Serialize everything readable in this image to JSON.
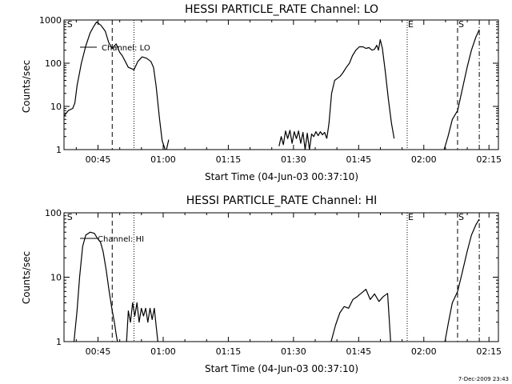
{
  "colors": {
    "background": "#ffffff",
    "foreground": "#000000"
  },
  "footer": {
    "timestamp": "7-Dec-2009 23:43"
  },
  "chart_data": [
    {
      "type": "line",
      "title": "HESSI PARTICLE_RATE Channel: LO",
      "xlabel": "Start Time (04-Jun-03 00:37:10)",
      "ylabel": "Counts/sec",
      "yscale": "log",
      "ylim": [
        1,
        1000
      ],
      "xlim_minutes_after_start": [
        0,
        100
      ],
      "xtick_labels": [
        "00:45",
        "01:00",
        "01:15",
        "01:30",
        "01:45",
        "02:00",
        "02:15"
      ],
      "xtick_minutes": [
        7.83,
        22.83,
        37.83,
        52.83,
        67.83,
        82.83,
        97.83
      ],
      "ytick_labels": [
        "1",
        "10",
        "100",
        "1000"
      ],
      "ytick_values": [
        1,
        10,
        100,
        1000
      ],
      "legend": {
        "entries": [
          "Channel: LO"
        ],
        "placement": "top-left"
      },
      "markers": [
        {
          "label": "S",
          "minute": 0.5,
          "style": "none"
        },
        {
          "label": "",
          "minute": 11.1,
          "style": "dashed"
        },
        {
          "label": "",
          "minute": 16.1,
          "style": "dotted"
        },
        {
          "label": "E",
          "minute": 79.0,
          "style": "dotted"
        },
        {
          "label": "S",
          "minute": 90.6,
          "style": "dashed"
        },
        {
          "label": "",
          "minute": 95.6,
          "style": "dashdot"
        }
      ],
      "series": [
        {
          "segments": [
            {
              "x": [
                0,
                1,
                2,
                2.5,
                3,
                4,
                5,
                6,
                6.8,
                7.5,
                8.5,
                9.5,
                10.3,
                11.1,
                12,
                12.8,
                13.4,
                14.1,
                14.8,
                15.5,
                16.1,
                17,
                18,
                19,
                20,
                20.6,
                21.2,
                22,
                22.6,
                23.3
              ],
              "y": [
                6,
                8,
                9,
                12,
                30,
                100,
                250,
                500,
                700,
                900,
                750,
                550,
                300,
                220,
                280,
                180,
                150,
                110,
                80,
                75,
                70,
                110,
                140,
                130,
                110,
                80,
                30,
                5,
                1.6,
                1
              ]
            },
            {
              "x": [
                23.6,
                24.1
              ],
              "y": [
                1,
                1.7
              ]
            },
            {
              "x": [
                49.5,
                50,
                50.5,
                51,
                51.5,
                52,
                52.5,
                53,
                53.5,
                54,
                54.5,
                55,
                55.5,
                56,
                56.5,
                57,
                57.5,
                58,
                58.5,
                59,
                59.5,
                60,
                60.5
              ],
              "y": [
                1.2,
                2,
                1.3,
                2.7,
                1.8,
                2.8,
                1.4,
                2.6,
                1.8,
                2.7,
                1.4,
                2.5,
                1,
                2.4,
                1,
                2.3,
                2,
                2.6,
                2.1,
                2.6,
                2.2,
                2.5,
                1.8
              ]
            },
            {
              "x": [
                60.5,
                61,
                61.6,
                62.3,
                63,
                63.6,
                64.2,
                65,
                65.7,
                66.4,
                67.2,
                68,
                68.8,
                69.5,
                70.2,
                70.9,
                71.5,
                72,
                72.4,
                72.8,
                73.3,
                74,
                74.7,
                75.4,
                76
              ],
              "y": [
                1.8,
                4,
                20,
                40,
                45,
                50,
                60,
                80,
                100,
                150,
                200,
                240,
                240,
                220,
                230,
                200,
                210,
                260,
                200,
                350,
                220,
                60,
                14,
                4,
                1.8
              ]
            },
            {
              "x": [
                87.5,
                88.4,
                89.4,
                90.6,
                91.7,
                92.8,
                93.8,
                94.8,
                95.6
              ],
              "y": [
                1,
                2,
                5,
                8,
                25,
                80,
                200,
                400,
                600
              ]
            }
          ]
        }
      ]
    },
    {
      "type": "line",
      "title": "HESSI PARTICLE_RATE Channel: HI",
      "xlabel": "Start Time (04-Jun-03 00:37:10)",
      "ylabel": "Counts/sec",
      "yscale": "log",
      "ylim": [
        1,
        100
      ],
      "xlim_minutes_after_start": [
        0,
        100
      ],
      "xtick_labels": [
        "00:45",
        "01:00",
        "01:15",
        "01:30",
        "01:45",
        "02:00",
        "02:15"
      ],
      "xtick_minutes": [
        7.83,
        22.83,
        37.83,
        52.83,
        67.83,
        82.83,
        97.83
      ],
      "ytick_labels": [
        "1",
        "10",
        "100"
      ],
      "ytick_values": [
        1,
        10,
        100
      ],
      "legend": {
        "entries": [
          "Channel: HI"
        ],
        "placement": "top-left"
      },
      "markers": [
        {
          "label": "S",
          "minute": 0.5,
          "style": "none"
        },
        {
          "label": "",
          "minute": 11.1,
          "style": "dashed"
        },
        {
          "label": "",
          "minute": 16.1,
          "style": "dotted"
        },
        {
          "label": "E",
          "minute": 79.0,
          "style": "dotted"
        },
        {
          "label": "S",
          "minute": 90.6,
          "style": "dashed"
        },
        {
          "label": "",
          "minute": 95.6,
          "style": "dashdot"
        }
      ],
      "series": [
        {
          "segments": [
            {
              "x": [
                2.3,
                3,
                3.6,
                4.3,
                5,
                6,
                7,
                7.7,
                8.4,
                9,
                9.7,
                10.4,
                11.1,
                11.6,
                12,
                12.3
              ],
              "y": [
                1,
                3,
                10,
                30,
                45,
                50,
                48,
                40,
                35,
                25,
                13,
                6,
                3,
                2,
                1.3,
                1
              ]
            },
            {
              "x": [
                14.4,
                14.8,
                15.3,
                15.8,
                16.3,
                16.8,
                17.3,
                17.8,
                18.3,
                18.8,
                19.3,
                19.8,
                20.3,
                20.8,
                21.2,
                21.6
              ],
              "y": [
                1,
                3,
                2,
                4,
                2.5,
                4,
                2,
                3.3,
                2.5,
                3.3,
                2,
                3.3,
                2.2,
                3.3,
                1.8,
                1
              ]
            },
            {
              "x": [
                61.5,
                62.5,
                63.5,
                64.5,
                65.5,
                66.5,
                67.5,
                68.5,
                69.5,
                70.5,
                71.5,
                72.5,
                73.5,
                74.5,
                75.2
              ],
              "y": [
                1,
                1.8,
                2.8,
                3.5,
                3.3,
                4.5,
                5,
                5.7,
                6.5,
                4.5,
                5.5,
                4.2,
                5,
                5.6,
                1
              ]
            },
            {
              "x": [
                87.7,
                88.5,
                89.4,
                90.6,
                91.7,
                92.8,
                93.8,
                94.8,
                95.6
              ],
              "y": [
                1,
                2,
                4,
                6,
                12,
                25,
                45,
                65,
                80
              ]
            }
          ]
        }
      ]
    }
  ]
}
